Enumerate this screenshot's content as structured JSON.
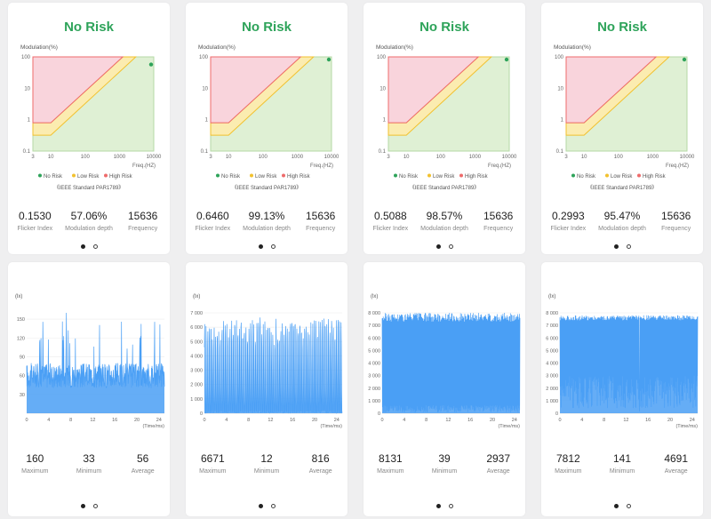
{
  "risk_panels": [
    {
      "title": "No Risk",
      "y_axis_label": "Modulation(%)",
      "x_axis_label": "Freq.(HZ)",
      "y_ticks": [
        "100",
        "10",
        "1",
        "0.1"
      ],
      "x_ticks": [
        "3",
        "10",
        "100",
        "1000",
        "10000"
      ],
      "legend": [
        "No Risk",
        "Low Risk",
        "High Risk"
      ],
      "standard": "《IEEE Standard PAR1789》",
      "point": {
        "frequency": 15636,
        "modulation": 57.06
      },
      "stats": [
        {
          "value": "0.1530",
          "label": "Flicker Index"
        },
        {
          "value": "57.06%",
          "label": "Modulation depth"
        },
        {
          "value": "15636",
          "label": "Frequency"
        }
      ]
    },
    {
      "title": "No Risk",
      "y_axis_label": "Modulation(%)",
      "x_axis_label": "Freq.(HZ)",
      "y_ticks": [
        "100",
        "10",
        "1",
        "0.1"
      ],
      "x_ticks": [
        "3",
        "10",
        "100",
        "1000",
        "10000"
      ],
      "legend": [
        "No Risk",
        "Low Risk",
        "High Risk"
      ],
      "standard": "《IEEE Standard PAR1789》",
      "point": {
        "frequency": 15636,
        "modulation": 99.13
      },
      "stats": [
        {
          "value": "0.6460",
          "label": "Flicker Index"
        },
        {
          "value": "99.13%",
          "label": "Modulation depth"
        },
        {
          "value": "15636",
          "label": "Frequency"
        }
      ]
    },
    {
      "title": "No Risk",
      "y_axis_label": "Modulation(%)",
      "x_axis_label": "Freq.(HZ)",
      "y_ticks": [
        "100",
        "10",
        "1",
        "0.1"
      ],
      "x_ticks": [
        "3",
        "10",
        "100",
        "1000",
        "10000"
      ],
      "legend": [
        "No Risk",
        "Low Risk",
        "High Risk"
      ],
      "standard": "《IEEE Standard PAR1789》",
      "point": {
        "frequency": 15636,
        "modulation": 98.57
      },
      "stats": [
        {
          "value": "0.5088",
          "label": "Flicker Index"
        },
        {
          "value": "98.57%",
          "label": "Modulation depth"
        },
        {
          "value": "15636",
          "label": "Frequency"
        }
      ]
    },
    {
      "title": "No Risk",
      "y_axis_label": "Modulation(%)",
      "x_axis_label": "Freq.(HZ)",
      "y_ticks": [
        "100",
        "10",
        "1",
        "0.1"
      ],
      "x_ticks": [
        "3",
        "10",
        "100",
        "1000",
        "10000"
      ],
      "legend": [
        "No Risk",
        "Low Risk",
        "High Risk"
      ],
      "standard": "《IEEE Standard PAR1789》",
      "point": {
        "frequency": 15636,
        "modulation": 95.47
      },
      "stats": [
        {
          "value": "0.2993",
          "label": "Flicker Index"
        },
        {
          "value": "95.47%",
          "label": "Modulation depth"
        },
        {
          "value": "15636",
          "label": "Frequency"
        }
      ]
    }
  ],
  "waveform_panels": [
    {
      "y_unit": "(lx)",
      "x_unit": "(Time/ms)",
      "y_ticks": [
        "150",
        "120",
        "90",
        "60",
        "30"
      ],
      "x_ticks": [
        "0",
        "4",
        "8",
        "12",
        "16",
        "20",
        "24"
      ],
      "max": 160,
      "min": 33,
      "avg": 56,
      "stats": [
        {
          "value": "160",
          "label": "Maximum"
        },
        {
          "value": "33",
          "label": "Minimum"
        },
        {
          "value": "56",
          "label": "Average"
        }
      ]
    },
    {
      "y_unit": "(lx)",
      "x_unit": "(Time/ms)",
      "y_ticks": [
        "7 000",
        "6 000",
        "5 000",
        "4 000",
        "3 000",
        "2 000",
        "1 000",
        "0"
      ],
      "x_ticks": [
        "0",
        "4",
        "8",
        "12",
        "16",
        "20",
        "24"
      ],
      "max": 6671,
      "min": 12,
      "avg": 816,
      "stats": [
        {
          "value": "6671",
          "label": "Maximum"
        },
        {
          "value": "12",
          "label": "Minimum"
        },
        {
          "value": "816",
          "label": "Average"
        }
      ]
    },
    {
      "y_unit": "(lx)",
      "x_unit": "(Time/ms)",
      "y_ticks": [
        "8 000",
        "7 000",
        "6 000",
        "5 000",
        "4 000",
        "3 000",
        "2 000",
        "1 000",
        "0"
      ],
      "x_ticks": [
        "0",
        "4",
        "8",
        "12",
        "16",
        "20",
        "24"
      ],
      "max": 8131,
      "min": 39,
      "avg": 2937,
      "stats": [
        {
          "value": "8131",
          "label": "Maximum"
        },
        {
          "value": "39",
          "label": "Minimum"
        },
        {
          "value": "2937",
          "label": "Average"
        }
      ]
    },
    {
      "y_unit": "(lx)",
      "x_unit": "(Time/ms)",
      "y_ticks": [
        "8 000",
        "7 000",
        "6 000",
        "5 000",
        "4 000",
        "3 000",
        "2 000",
        "1 000",
        "0"
      ],
      "x_ticks": [
        "0",
        "4",
        "8",
        "12",
        "16",
        "20",
        "24"
      ],
      "max": 7812,
      "min": 141,
      "avg": 4691,
      "stats": [
        {
          "value": "7812",
          "label": "Maximum"
        },
        {
          "value": "141",
          "label": "Minimum"
        },
        {
          "value": "4691",
          "label": "Average"
        }
      ]
    }
  ],
  "colors": {
    "no_risk": "#2ea35a",
    "low_risk": "#f2c12e",
    "high_risk": "#ee6b6b",
    "wave": "#4a9ff5"
  }
}
